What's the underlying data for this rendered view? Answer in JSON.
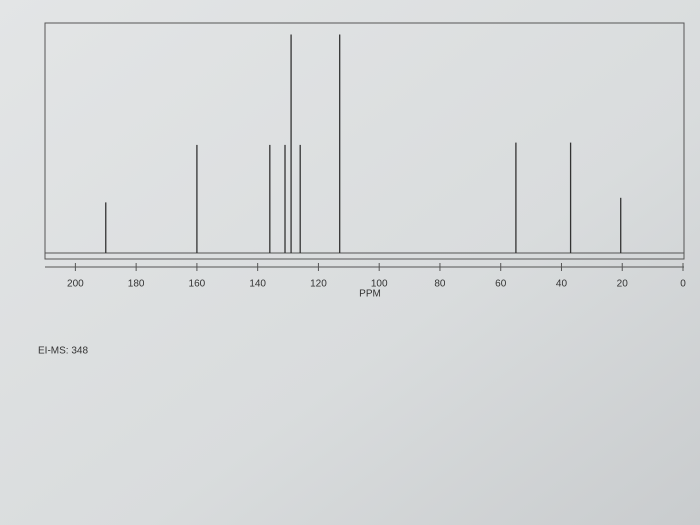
{
  "chart_data": {
    "type": "stem",
    "xlabel": "PPM",
    "annotation": "EI-MS: 348",
    "x": [
      190,
      160,
      136,
      131,
      129,
      126,
      113,
      55,
      37,
      20.5
    ],
    "values": [
      22,
      47,
      47,
      47,
      95,
      47,
      95,
      48,
      48,
      24
    ],
    "xlim": [
      210,
      0
    ],
    "ylim": [
      0,
      100
    ],
    "xticks": [
      200,
      180,
      160,
      140,
      120,
      100,
      80,
      60,
      40,
      20,
      0
    ],
    "color": "#333333"
  }
}
